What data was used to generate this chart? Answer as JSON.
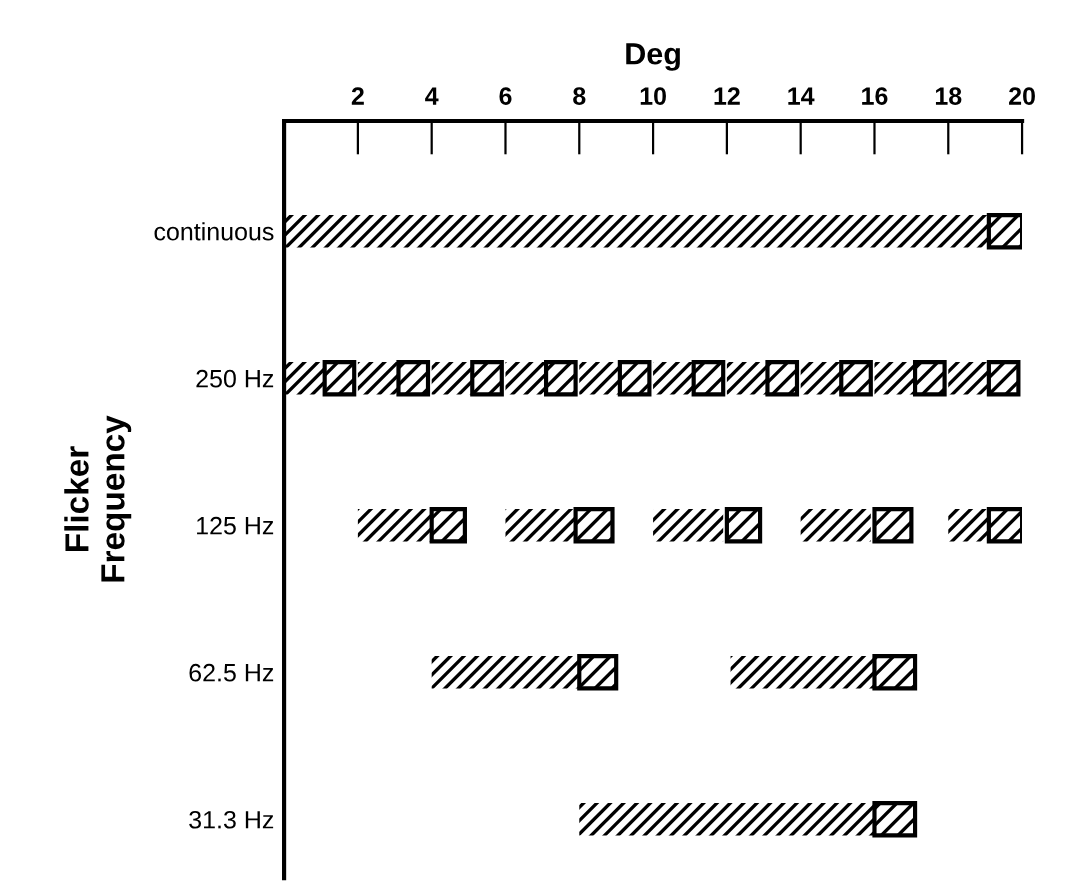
{
  "chart_data": {
    "type": "bar",
    "orientation": "horizontal",
    "xlabel": "Deg",
    "ylabel": "Flicker\nFrequency",
    "categories": [
      "continuous",
      "250 Hz",
      "125 Hz",
      "62.5 Hz",
      "31.3 Hz"
    ],
    "xlim": [
      0,
      20
    ],
    "xticks": [
      2,
      4,
      6,
      8,
      10,
      12,
      14,
      16,
      18,
      20
    ],
    "series": [
      {
        "color": "#000000",
        "base": [
          0,
          0,
          2,
          4,
          8
        ],
        "values": [
          19.1,
          1.1,
          2,
          4,
          8
        ]
      },
      {
        "color": "#000000",
        "base": [
          null,
          2,
          6,
          12.1,
          null
        ],
        "values": [
          null,
          1.1,
          1.9,
          3.9,
          null
        ]
      },
      {
        "color": "#000000",
        "base": [
          null,
          4,
          10,
          null,
          null
        ],
        "values": [
          null,
          1.1,
          1.9,
          null,
          null
        ]
      },
      {
        "color": "#000000",
        "base": [
          null,
          6,
          14,
          null,
          null
        ],
        "values": [
          null,
          1.1,
          1.9,
          null,
          null
        ]
      },
      {
        "color": "#000000",
        "base": [
          null,
          8,
          18,
          null,
          null
        ],
        "values": [
          null,
          1.1,
          1.1,
          null,
          null
        ]
      },
      {
        "color": "#000000",
        "base": [
          null,
          10,
          null,
          null,
          null
        ],
        "values": [
          null,
          1.1,
          null,
          null,
          null
        ]
      },
      {
        "color": "#000000",
        "base": [
          null,
          12,
          null,
          null,
          null
        ],
        "values": [
          null,
          1.1,
          null,
          null,
          null
        ]
      },
      {
        "color": "#000000",
        "base": [
          null,
          14,
          null,
          null,
          null
        ],
        "values": [
          null,
          1.1,
          null,
          null,
          null
        ]
      },
      {
        "color": "#000000",
        "base": [
          null,
          16,
          null,
          null,
          null
        ],
        "values": [
          null,
          1.1,
          null,
          null,
          null
        ]
      },
      {
        "color": "#000000",
        "base": [
          null,
          18,
          null,
          null,
          null
        ],
        "values": [
          null,
          1.1,
          null,
          null,
          null
        ]
      },
      {
        "line_style": "solid",
        "color": "#000000",
        "base": [
          19.1,
          1.1,
          4,
          8,
          16
        ],
        "values": [
          0.9,
          0.8,
          0.9,
          1,
          1.1
        ]
      },
      {
        "line_style": "solid",
        "color": "#000000",
        "base": [
          null,
          3.1,
          7.9,
          16,
          null
        ],
        "values": [
          null,
          0.8,
          1,
          1.1,
          null
        ]
      },
      {
        "line_style": "solid",
        "color": "#000000",
        "base": [
          null,
          5.1,
          12,
          null,
          null
        ],
        "values": [
          null,
          0.8,
          0.9,
          null,
          null
        ]
      },
      {
        "line_style": "solid",
        "color": "#000000",
        "base": [
          null,
          7.1,
          16,
          null,
          null
        ],
        "values": [
          null,
          0.8,
          1,
          null,
          null
        ]
      },
      {
        "line_style": "solid",
        "color": "#000000",
        "base": [
          null,
          9.1,
          19.1,
          null,
          null
        ],
        "values": [
          null,
          0.8,
          0.9,
          null,
          null
        ]
      },
      {
        "line_style": "solid",
        "color": "#000000",
        "base": [
          null,
          11.1,
          null,
          null,
          null
        ],
        "values": [
          null,
          0.8,
          null,
          null,
          null
        ]
      },
      {
        "line_style": "solid",
        "color": "#000000",
        "base": [
          null,
          13.1,
          null,
          null,
          null
        ],
        "values": [
          null,
          0.8,
          null,
          null,
          null
        ]
      },
      {
        "line_style": "solid",
        "color": "#000000",
        "base": [
          null,
          15.1,
          null,
          null,
          null
        ],
        "values": [
          null,
          0.8,
          null,
          null,
          null
        ]
      },
      {
        "line_style": "solid",
        "color": "#000000",
        "base": [
          null,
          17.1,
          null,
          null,
          null
        ],
        "values": [
          null,
          0.8,
          null,
          null,
          null
        ]
      },
      {
        "line_style": "solid",
        "color": "#000000",
        "base": [
          null,
          19.1,
          null,
          null,
          null
        ],
        "values": [
          null,
          0.8,
          null,
          null,
          null
        ]
      }
    ]
  }
}
